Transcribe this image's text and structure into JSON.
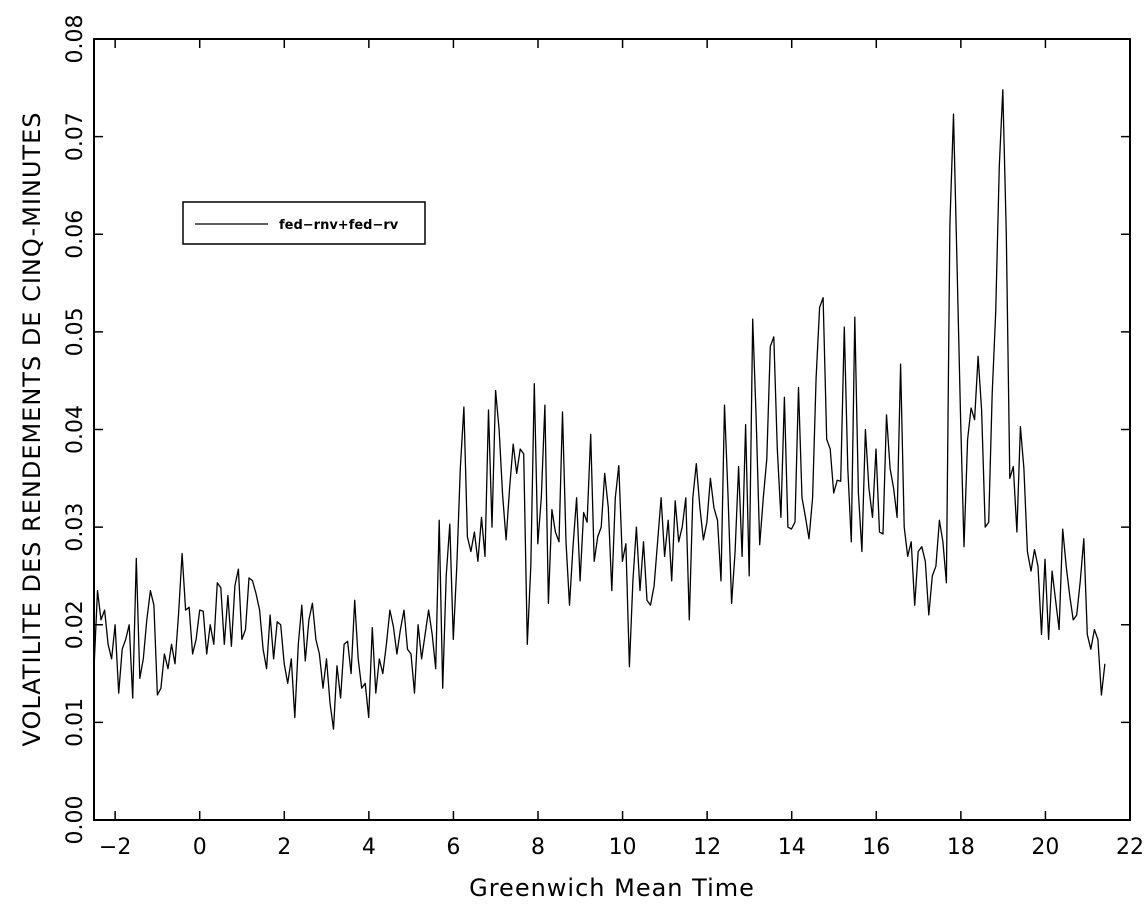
{
  "chart_data": {
    "type": "line",
    "xlabel": "Greenwich Mean Time",
    "ylabel": "VOLATILITE DES RENDEMENTS DE CINQ-MINUTES",
    "xlim": [
      -2.5,
      22
    ],
    "ylim": [
      0,
      0.08
    ],
    "xticks": [
      -2,
      0,
      2,
      4,
      6,
      8,
      10,
      12,
      14,
      16,
      18,
      20,
      22
    ],
    "xtick_labels": [
      "−2",
      "0",
      "2",
      "4",
      "6",
      "8",
      "10",
      "12",
      "14",
      "16",
      "18",
      "20",
      "22"
    ],
    "yticks": [
      0,
      0.01,
      0.02,
      0.03,
      0.04,
      0.05,
      0.06,
      0.07,
      0.08
    ],
    "ytick_labels": [
      "0.00",
      "0.01",
      "0.02",
      "0.03",
      "0.04",
      "0.05",
      "0.06",
      "0.07",
      "0.08"
    ],
    "grid": false,
    "legend_position": "upper-left",
    "series": [
      {
        "name": "fed−rnv+fed−rv",
        "color": "#000000",
        "x_start": -2.5,
        "x_step": 0.0833,
        "values": [
          0.0155,
          0.0235,
          0.0205,
          0.0215,
          0.018,
          0.0165,
          0.02,
          0.013,
          0.0175,
          0.0185,
          0.02,
          0.0125,
          0.0268,
          0.0145,
          0.0165,
          0.0205,
          0.0235,
          0.022,
          0.0128,
          0.0135,
          0.017,
          0.0155,
          0.018,
          0.016,
          0.021,
          0.0273,
          0.0215,
          0.0218,
          0.017,
          0.0185,
          0.0215,
          0.0214,
          0.017,
          0.02,
          0.018,
          0.0243,
          0.0238,
          0.018,
          0.023,
          0.0178,
          0.024,
          0.0257,
          0.0185,
          0.0195,
          0.0248,
          0.0245,
          0.0232,
          0.0215,
          0.0175,
          0.0155,
          0.021,
          0.0165,
          0.0203,
          0.02,
          0.016,
          0.014,
          0.0165,
          0.0105,
          0.018,
          0.022,
          0.0163,
          0.0205,
          0.0222,
          0.0185,
          0.017,
          0.0135,
          0.0165,
          0.012,
          0.0093,
          0.0158,
          0.0125,
          0.018,
          0.0183,
          0.015,
          0.0225,
          0.0165,
          0.0135,
          0.014,
          0.0105,
          0.0197,
          0.013,
          0.0165,
          0.015,
          0.018,
          0.0215,
          0.0198,
          0.017,
          0.0195,
          0.0215,
          0.0175,
          0.017,
          0.013,
          0.02,
          0.0165,
          0.019,
          0.0215,
          0.019,
          0.0155,
          0.0307,
          0.0135,
          0.025,
          0.0303,
          0.0185,
          0.026,
          0.036,
          0.0423,
          0.029,
          0.0275,
          0.0295,
          0.0265,
          0.031,
          0.027,
          0.042,
          0.03,
          0.044,
          0.04,
          0.0333,
          0.0287,
          0.034,
          0.0385,
          0.0355,
          0.038,
          0.0375,
          0.018,
          0.026,
          0.0447,
          0.0283,
          0.033,
          0.0425,
          0.0222,
          0.0318,
          0.0295,
          0.0285,
          0.0418,
          0.0285,
          0.022,
          0.028,
          0.033,
          0.0245,
          0.0315,
          0.0305,
          0.0395,
          0.0265,
          0.029,
          0.03,
          0.0355,
          0.032,
          0.0235,
          0.033,
          0.0363,
          0.0265,
          0.0283,
          0.0157,
          0.0245,
          0.03,
          0.0235,
          0.0285,
          0.0225,
          0.022,
          0.024,
          0.0285,
          0.033,
          0.027,
          0.0307,
          0.0245,
          0.0327,
          0.0285,
          0.03,
          0.033,
          0.0205,
          0.033,
          0.0365,
          0.032,
          0.0287,
          0.0305,
          0.035,
          0.032,
          0.0307,
          0.0245,
          0.0425,
          0.0333,
          0.0222,
          0.0275,
          0.0362,
          0.027,
          0.0405,
          0.025,
          0.0513,
          0.041,
          0.0282,
          0.033,
          0.037,
          0.0485,
          0.0495,
          0.038,
          0.031,
          0.0433,
          0.03,
          0.0298,
          0.0305,
          0.0443,
          0.033,
          0.031,
          0.0288,
          0.033,
          0.0453,
          0.0525,
          0.0535,
          0.039,
          0.038,
          0.0335,
          0.0348,
          0.0347,
          0.0505,
          0.036,
          0.0285,
          0.0515,
          0.0335,
          0.0275,
          0.04,
          0.034,
          0.031,
          0.038,
          0.0295,
          0.0293,
          0.0415,
          0.036,
          0.034,
          0.031,
          0.0467,
          0.03,
          0.027,
          0.0285,
          0.022,
          0.0275,
          0.028,
          0.0265,
          0.021,
          0.025,
          0.026,
          0.0307,
          0.0285,
          0.0243,
          0.061,
          0.0723,
          0.057,
          0.0415,
          0.028,
          0.039,
          0.0422,
          0.041,
          0.0475,
          0.042,
          0.03,
          0.0305,
          0.0437,
          0.052,
          0.067,
          0.0748,
          0.06,
          0.035,
          0.0362,
          0.0295,
          0.0403,
          0.036,
          0.0275,
          0.0255,
          0.0277,
          0.026,
          0.019,
          0.0267,
          0.0185,
          0.0255,
          0.0225,
          0.0195,
          0.0298,
          0.026,
          0.023,
          0.0205,
          0.021,
          0.0245,
          0.0288,
          0.019,
          0.0175,
          0.0195,
          0.0185,
          0.0128,
          0.016
        ]
      }
    ]
  }
}
